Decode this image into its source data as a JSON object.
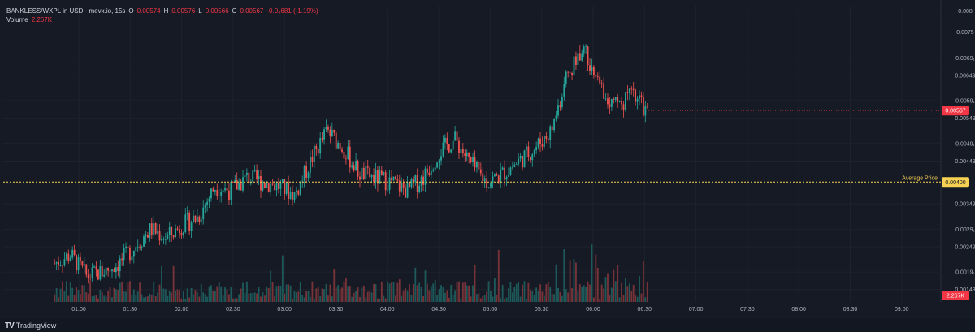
{
  "header": {
    "symbol": "BANKLESS/WXPL in USD · mevx.io, 15s",
    "o_label": "O",
    "o_value": "0.00574",
    "h_label": "H",
    "h_value": "0.00576",
    "l_label": "L",
    "l_value": "0.00566",
    "c_label": "C",
    "c_value": "0.00567",
    "change": "-0.0₄681 (-1.19%)",
    "volume_label": "Volume",
    "volume_value": "2.267K"
  },
  "price_axis": {
    "ticks": [
      "0.008",
      "0.0075",
      "0.0069₁",
      "0.00649",
      "0.0059₁",
      "0.00549",
      "0.0049₁",
      "0.00449",
      "0.00349",
      "0.0029₁",
      "0.00249",
      "0.0019₁",
      "0.00149"
    ],
    "last_price_badge": "0.00567",
    "avg_price_badge": "0.00400",
    "avg_price_label": "Average Price",
    "volume_badge": "2.267K"
  },
  "time_axis": {
    "ticks": [
      "01:00",
      "01:30",
      "02:00",
      "02:30",
      "03:00",
      "03:30",
      "04:00",
      "04:30",
      "05:00",
      "05:30",
      "06:00",
      "06:30",
      "07:00",
      "07:30",
      "08:00",
      "08:30",
      "09:00"
    ]
  },
  "footer": {
    "brand": "TradingView",
    "brand_icon": "tradingview-logo-icon"
  },
  "colors": {
    "up": "#26a69a",
    "down": "#ef5350",
    "avg_line": "#f7d154",
    "badge_red": "#f23645",
    "background": "#161a25"
  },
  "chart_data": {
    "type": "line",
    "description_series": "BANKLESS/WXPL price (USD)",
    "x": [
      "00:50",
      "01:00",
      "01:10",
      "01:20",
      "01:30",
      "01:40",
      "01:50",
      "02:00",
      "02:10",
      "02:20",
      "02:30",
      "02:40",
      "02:50",
      "03:00",
      "03:10",
      "03:20",
      "03:30",
      "03:40",
      "03:50",
      "04:00",
      "04:10",
      "04:20",
      "04:30",
      "04:40",
      "04:50",
      "05:00",
      "05:10",
      "05:20",
      "05:30",
      "05:40",
      "05:50",
      "06:00",
      "06:05",
      "06:10",
      "06:15",
      "06:20",
      "06:25",
      "06:30"
    ],
    "series": [
      {
        "values": [
          0.0021,
          0.0023,
          0.0018,
          0.0019,
          0.0021,
          0.0025,
          0.0029,
          0.0027,
          0.003,
          0.0032,
          0.0039,
          0.0038,
          0.0041,
          0.004,
          0.0039,
          0.0037,
          0.0045,
          0.0052,
          0.0048,
          0.0042,
          0.0041,
          0.004,
          0.0038,
          0.0041,
          0.0047,
          0.005,
          0.0044,
          0.004,
          0.0042,
          0.0045,
          0.0048,
          0.0052,
          0.0065,
          0.0072,
          0.0062,
          0.0058,
          0.006,
          0.00567
        ]
      }
    ],
    "volume": {
      "last": "2.267K"
    },
    "average_price": 0.004,
    "ylim": [
      0.0012,
      0.0081
    ]
  }
}
